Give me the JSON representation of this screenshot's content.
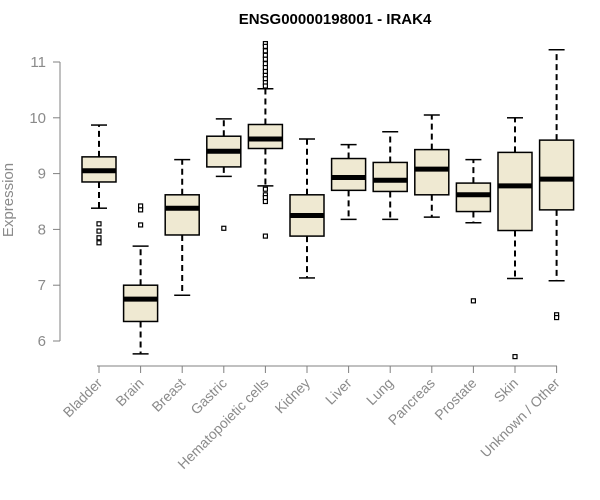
{
  "chart_data": {
    "type": "box",
    "title": "ENSG00000198001 - IRAK4",
    "xlabel": "",
    "ylabel": "Expression",
    "ylim": [
      5.55,
      11.45
    ],
    "yticks": [
      6,
      7,
      8,
      9,
      10,
      11
    ],
    "box_fill": "#efe9d2",
    "categories": [
      "Bladder",
      "Brain",
      "Breast",
      "Gastric",
      "Hematopoietic cells",
      "Kidney",
      "Liver",
      "Lung",
      "Pancreas",
      "Prostate",
      "Skin",
      "Unknown / Other"
    ],
    "boxes": [
      {
        "category": "Bladder",
        "whisker_low": 8.38,
        "q1": 8.85,
        "median": 9.05,
        "q3": 9.3,
        "whisker_high": 9.87,
        "outliers": [
          8.1,
          7.97,
          7.85,
          7.76
        ]
      },
      {
        "category": "Brain",
        "whisker_low": 5.77,
        "q1": 6.35,
        "median": 6.75,
        "q3": 7.0,
        "whisker_high": 7.7,
        "outliers": [
          8.42,
          8.35,
          8.08
        ]
      },
      {
        "category": "Breast",
        "whisker_low": 6.82,
        "q1": 7.9,
        "median": 8.38,
        "q3": 8.62,
        "whisker_high": 9.25,
        "outliers": []
      },
      {
        "category": "Gastric",
        "whisker_low": 8.95,
        "q1": 9.12,
        "median": 9.4,
        "q3": 9.67,
        "whisker_high": 9.98,
        "outliers": [
          8.02
        ]
      },
      {
        "category": "Hematopoietic cells",
        "whisker_low": 8.78,
        "q1": 9.45,
        "median": 9.62,
        "q3": 9.88,
        "whisker_high": 10.52,
        "outliers": [
          11.33,
          11.28,
          11.2,
          11.12,
          11.05,
          10.97,
          10.9,
          10.83,
          10.76,
          10.7,
          10.63,
          10.57,
          8.72,
          8.62,
          8.57,
          8.5,
          7.88
        ]
      },
      {
        "category": "Kidney",
        "whisker_low": 7.13,
        "q1": 7.88,
        "median": 8.25,
        "q3": 8.62,
        "whisker_high": 9.62,
        "outliers": []
      },
      {
        "category": "Liver",
        "whisker_low": 8.18,
        "q1": 8.7,
        "median": 8.93,
        "q3": 9.27,
        "whisker_high": 9.52,
        "outliers": []
      },
      {
        "category": "Lung",
        "whisker_low": 8.18,
        "q1": 8.68,
        "median": 8.88,
        "q3": 9.2,
        "whisker_high": 9.75,
        "outliers": []
      },
      {
        "category": "Pancreas",
        "whisker_low": 8.22,
        "q1": 8.62,
        "median": 9.08,
        "q3": 9.43,
        "whisker_high": 10.05,
        "outliers": []
      },
      {
        "category": "Prostate",
        "whisker_low": 8.12,
        "q1": 8.32,
        "median": 8.62,
        "q3": 8.83,
        "whisker_high": 9.25,
        "outliers": [
          6.72
        ]
      },
      {
        "category": "Skin",
        "whisker_low": 7.12,
        "q1": 7.98,
        "median": 8.78,
        "q3": 9.38,
        "whisker_high": 10.0,
        "outliers": [
          5.72
        ]
      },
      {
        "category": "Unknown / Other",
        "whisker_low": 7.08,
        "q1": 8.35,
        "median": 8.9,
        "q3": 9.6,
        "whisker_high": 11.22,
        "outliers": [
          6.47,
          6.42
        ]
      }
    ]
  }
}
